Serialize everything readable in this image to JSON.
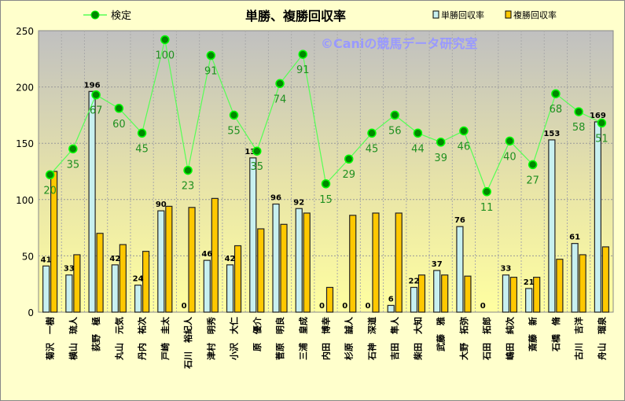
{
  "chart_data": {
    "type": "bar",
    "title": "単勝、複勝回収率",
    "watermark": "©Caniの競馬データ研究室",
    "ylim": [
      0,
      250
    ],
    "yticks": [
      0,
      50,
      100,
      150,
      200,
      250
    ],
    "grid": true,
    "legend_placement": "top",
    "categories": [
      "菊沢 一樹",
      "横山 琉人",
      "荻野 極",
      "丸山 元気",
      "丹内 祐次",
      "戸崎 圭太",
      "石川 裕紀人",
      "津村 明秀",
      "小沢 大仁",
      "原 優介",
      "菅原 明良",
      "三浦 皇成",
      "内田 博幸",
      "杉原 誠人",
      "石神 深道",
      "吉田 隼人",
      "柴田 大知",
      "武藤 雅",
      "大野 拓弥",
      "石田 拓郎",
      "嶋田 純次",
      "斎藤 新",
      "石橋 脩",
      "古川 吉洋",
      "舟山 瑠泉"
    ],
    "series": [
      {
        "name": "単勝回収率",
        "type": "bar",
        "color": "#c8f0f0",
        "values": [
          41,
          33,
          196,
          42,
          24,
          90,
          0,
          46,
          42,
          137,
          96,
          92,
          0,
          0,
          0,
          6,
          22,
          37,
          76,
          0,
          33,
          21,
          153,
          61,
          169
        ]
      },
      {
        "name": "複勝回収率",
        "type": "bar",
        "color": "#ffc800",
        "values": [
          125,
          51,
          70,
          60,
          54,
          94,
          93,
          101,
          59,
          74,
          78,
          88,
          22,
          86,
          88,
          88,
          33,
          33,
          32,
          0,
          31,
          31,
          47,
          51,
          58
        ]
      },
      {
        "name": "検定",
        "type": "line",
        "color": "#00a000",
        "values": [
          122,
          145,
          193,
          181,
          159,
          242,
          126,
          228,
          175,
          143,
          203,
          229,
          114,
          136,
          159,
          175,
          159,
          151,
          161,
          107,
          152,
          131,
          194,
          178,
          168
        ],
        "labels": [
          20,
          35,
          67,
          60,
          45,
          100,
          23,
          91,
          55,
          35,
          74,
          91,
          15,
          29,
          45,
          56,
          44,
          39,
          46,
          11,
          40,
          27,
          68,
          58,
          51
        ]
      }
    ]
  }
}
